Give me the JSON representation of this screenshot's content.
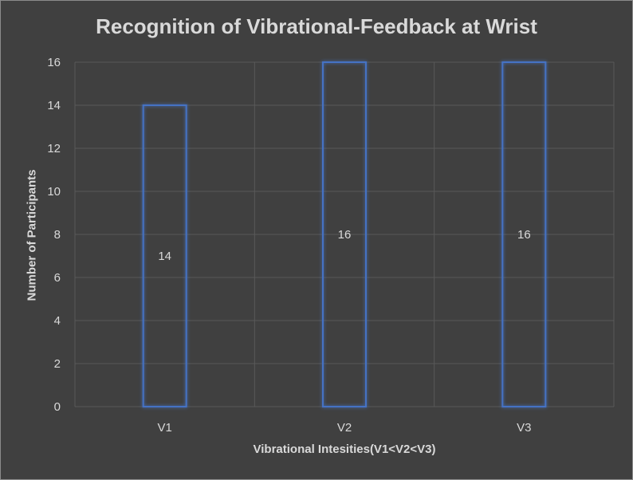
{
  "chart_data": {
    "type": "bar",
    "title": "Recognition of Vibrational-Feedback at Wrist",
    "xlabel": "Vibrational Intesities(V1<V2<V3)",
    "ylabel": "Number of Participants",
    "categories": [
      "V1",
      "V2",
      "V3"
    ],
    "values": [
      14,
      16,
      16
    ],
    "data_labels": [
      "14",
      "16",
      "16"
    ],
    "ylim": [
      0,
      16
    ],
    "yticks": [
      0,
      2,
      4,
      6,
      8,
      10,
      12,
      14,
      16
    ],
    "ytick_labels": [
      "0",
      "2",
      "4",
      "6",
      "8",
      "10",
      "12",
      "14",
      "16"
    ],
    "grid": true,
    "legend": "none",
    "bar_style": "outline",
    "bar_color": "#4472c4",
    "background_color": "#404040",
    "text_color": "#d9d9d9",
    "gridline_color": "#595959"
  }
}
